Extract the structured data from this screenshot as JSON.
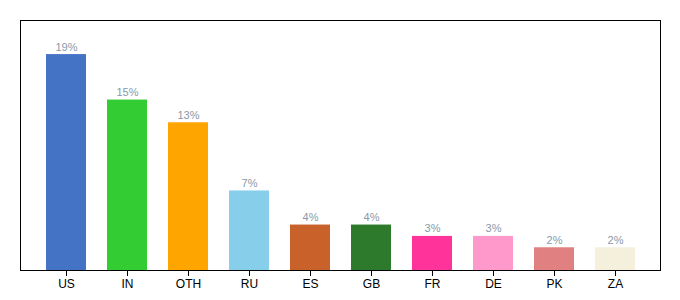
{
  "chart_data": {
    "type": "bar",
    "categories": [
      "US",
      "IN",
      "OTH",
      "RU",
      "ES",
      "GB",
      "FR",
      "DE",
      "PK",
      "ZA"
    ],
    "values": [
      19,
      15,
      13,
      7,
      4,
      4,
      3,
      3,
      2,
      2
    ],
    "value_labels": [
      "19%",
      "15%",
      "13%",
      "7%",
      "4%",
      "4%",
      "3%",
      "3%",
      "2%",
      "2%"
    ],
    "colors": [
      "#4472C4",
      "#33CC33",
      "#FFA500",
      "#87CEEB",
      "#C8622A",
      "#2D7A2D",
      "#FF3399",
      "#FF99CC",
      "#E08080",
      "#F5F0DC"
    ],
    "ylim": [
      0,
      22
    ],
    "data_labels": true,
    "tick_labels": "x"
  }
}
